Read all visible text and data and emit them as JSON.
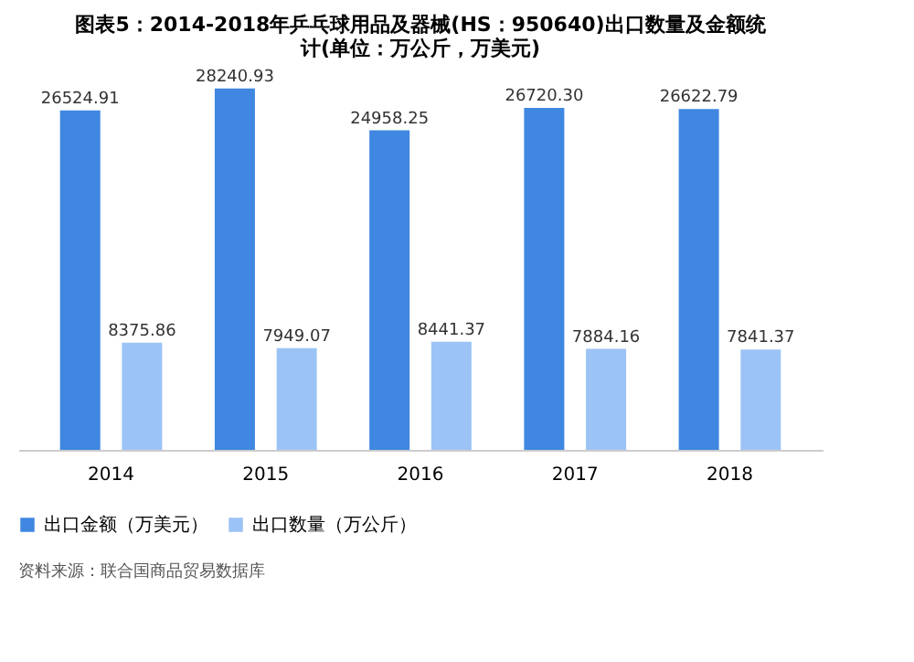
{
  "chart_data": {
    "type": "bar",
    "title": "图表5：2014-2018年乒乓球用品及器械(HS：950640)出口数量及金额统计(单位：万公斤，万美元)",
    "categories": [
      "2014",
      "2015",
      "2016",
      "2017",
      "2018"
    ],
    "series": [
      {
        "name": "出口金额（万美元）",
        "color": "#3f87e0",
        "values": [
          26524.91,
          28240.93,
          24958.25,
          26720.3,
          26622.79
        ],
        "value_labels": [
          "26524.91",
          "28240.93",
          "24958.25",
          "26720.30",
          "26622.79"
        ]
      },
      {
        "name": "出口数量（万公斤）",
        "color": "#9cc3f5",
        "values": [
          8375.86,
          7949.07,
          8441.37,
          7884.16,
          7841.37
        ],
        "value_labels": [
          "8375.86",
          "7949.07",
          "8441.37",
          "7884.16",
          "7841.37"
        ]
      }
    ],
    "legend": "bottom",
    "grid": false,
    "annotations": [
      "资料来源：联合国商品贸易数据库"
    ]
  }
}
